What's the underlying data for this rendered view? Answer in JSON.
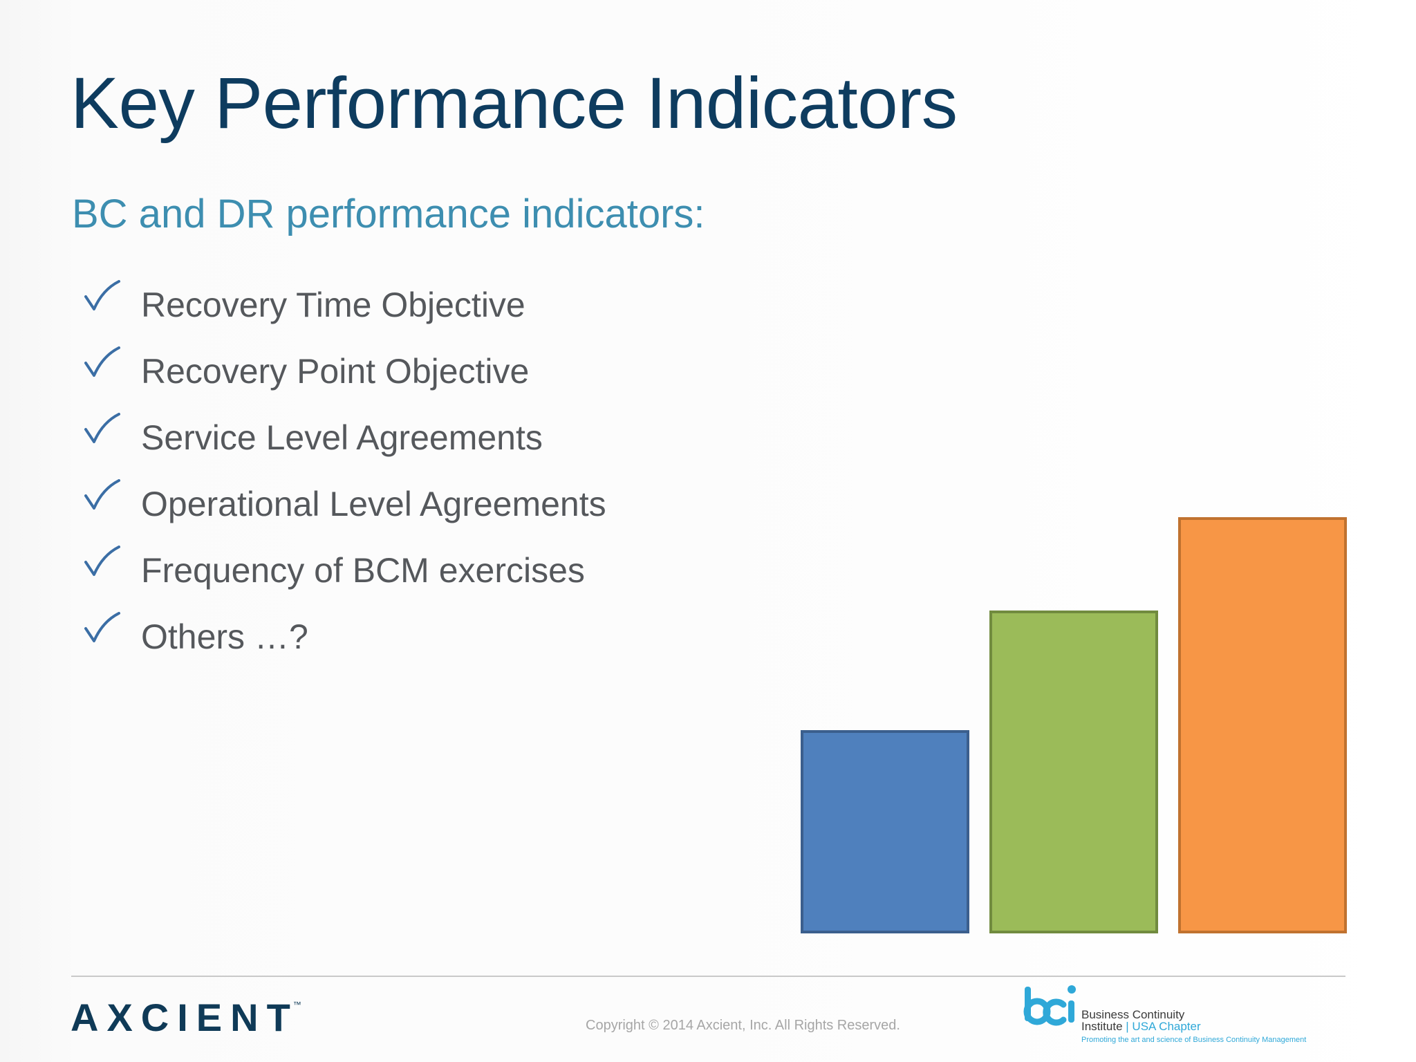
{
  "slide": {
    "title": "Key Performance Indicators",
    "subtitle": "BC and DR performance indicators:",
    "bullets": [
      "Recovery Time Objective",
      "Recovery Point Objective",
      "Service Level Agreements",
      "Operational Level Agreements",
      "Frequency of BCM exercises",
      "Others …?"
    ],
    "check_icon": "checkmark-icon"
  },
  "chart_data": {
    "type": "bar",
    "categories": [
      "",
      "",
      ""
    ],
    "values": [
      290,
      463,
      598
    ],
    "colors": [
      "#4f80bd",
      "#9bbb59",
      "#f79646"
    ],
    "border_colors": [
      "#3b5f8d",
      "#718b3f",
      "#c0722f"
    ],
    "title": "",
    "xlabel": "",
    "ylabel": "",
    "ylim": [
      0,
      600
    ],
    "grid": false,
    "axes_visible": false
  },
  "footer": {
    "brand": "AXCIENT",
    "trademark": "™",
    "copyright": "Copyright © 2014 Axcient, Inc. All Rights Reserved.",
    "bci": {
      "line1": "Business Continuity",
      "line2_prefix": "Institute",
      "line2_chapter": "USA Chapter",
      "tagline": "Promoting the art and science of Business Continuity Management"
    }
  },
  "colors": {
    "title": "#0e3c5f",
    "subtitle": "#3d8eb0",
    "bullet_text": "#55585c",
    "check": "#3b6ea5",
    "bci_blue": "#2fa8d8"
  }
}
